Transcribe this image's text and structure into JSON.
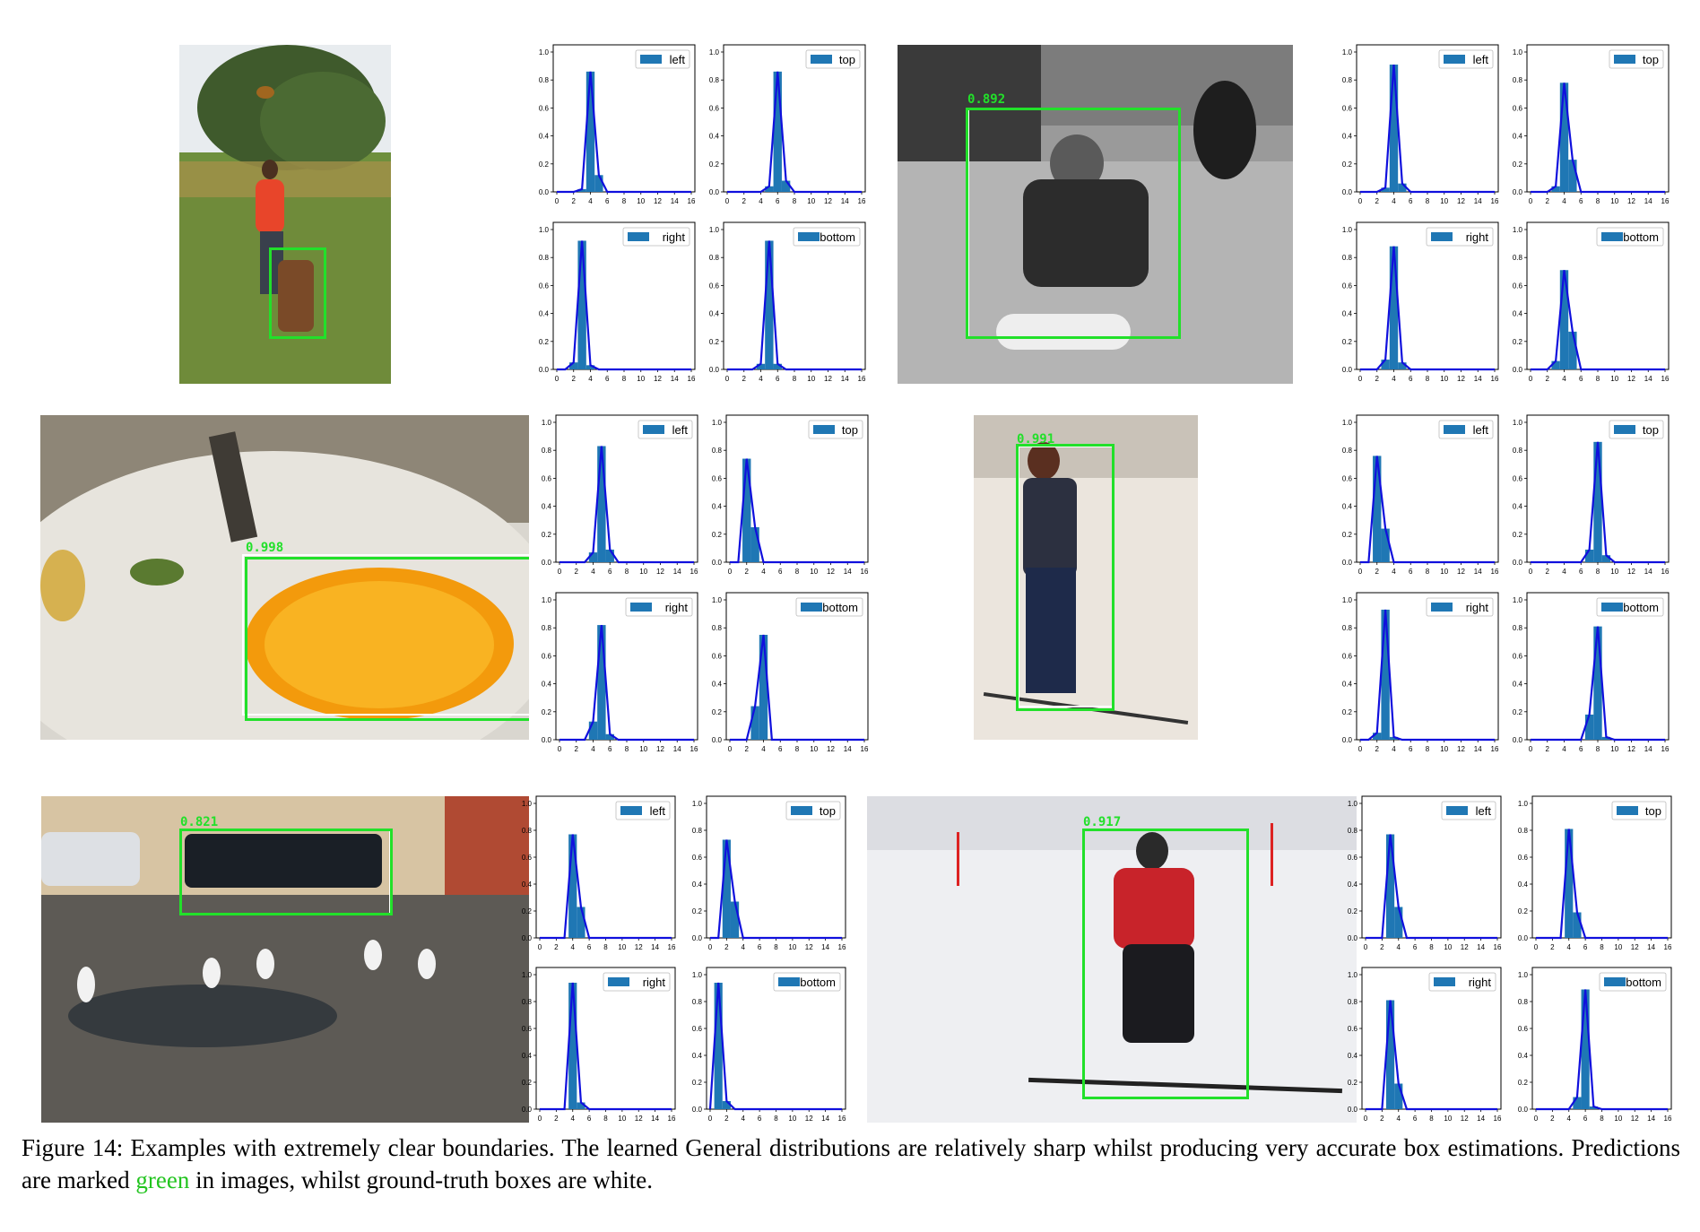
{
  "figure": {
    "caption_prefix": "Figure 14: Examples with extremely clear boundaries. The learned General distributions are relatively sharp whilst producing very accurate box estimations. Predictions are marked ",
    "caption_highlight": "green",
    "caption_suffix": " in images, whilst ground-truth boxes are white.",
    "colors": {
      "prediction": "#22e02a",
      "ground_truth": "#ffffff",
      "bar": "#1f77b4",
      "curve": "#1010dd"
    }
  },
  "photos": [
    {
      "id": "dog",
      "subject": "person and dog on grass",
      "score": ""
    },
    {
      "id": "child",
      "subject": "child sitting on sled (grayscale)",
      "score": "0.892"
    },
    {
      "id": "orange",
      "subject": "orange slice on plate",
      "score": "0.998"
    },
    {
      "id": "skier-woman",
      "subject": "woman standing on skis",
      "score": "0.991"
    },
    {
      "id": "truck",
      "subject": "pickup truck and egrets in parking lot",
      "score": "0.821"
    },
    {
      "id": "skier",
      "subject": "skier with poles on snow",
      "score": "0.917"
    }
  ],
  "chart_data": [
    {
      "type": "bar",
      "group": "dog",
      "legend": "left",
      "x": [
        0,
        1,
        2,
        3,
        4,
        5,
        6,
        7,
        8,
        9,
        10,
        11,
        12,
        13,
        14,
        15,
        16
      ],
      "values": [
        0,
        0,
        0,
        0.02,
        0.86,
        0.12,
        0,
        0,
        0,
        0,
        0,
        0,
        0,
        0,
        0,
        0,
        0
      ],
      "xlim": [
        0,
        16
      ],
      "ylim": [
        0,
        1.0
      ]
    },
    {
      "type": "bar",
      "group": "dog",
      "legend": "top",
      "x": [
        0,
        1,
        2,
        3,
        4,
        5,
        6,
        7,
        8,
        9,
        10,
        11,
        12,
        13,
        14,
        15,
        16
      ],
      "values": [
        0,
        0,
        0,
        0,
        0,
        0.04,
        0.86,
        0.08,
        0,
        0,
        0,
        0,
        0,
        0,
        0,
        0,
        0
      ],
      "xlim": [
        0,
        16
      ],
      "ylim": [
        0,
        1.0
      ]
    },
    {
      "type": "bar",
      "group": "dog",
      "legend": "right",
      "x": [
        0,
        1,
        2,
        3,
        4,
        5,
        6,
        7,
        8,
        9,
        10,
        11,
        12,
        13,
        14,
        15,
        16
      ],
      "values": [
        0,
        0,
        0.05,
        0.92,
        0.03,
        0,
        0,
        0,
        0,
        0,
        0,
        0,
        0,
        0,
        0,
        0,
        0
      ],
      "xlim": [
        0,
        16
      ],
      "ylim": [
        0,
        1.0
      ]
    },
    {
      "type": "bar",
      "group": "dog",
      "legend": "bottom",
      "x": [
        0,
        1,
        2,
        3,
        4,
        5,
        6,
        7,
        8,
        9,
        10,
        11,
        12,
        13,
        14,
        15,
        16
      ],
      "values": [
        0,
        0,
        0,
        0,
        0.04,
        0.92,
        0.04,
        0,
        0,
        0,
        0,
        0,
        0,
        0,
        0,
        0,
        0
      ],
      "xlim": [
        0,
        16
      ],
      "ylim": [
        0,
        1.0
      ]
    },
    {
      "type": "bar",
      "group": "child",
      "legend": "left",
      "x": [
        0,
        1,
        2,
        3,
        4,
        5,
        6,
        7,
        8,
        9,
        10,
        11,
        12,
        13,
        14,
        15,
        16
      ],
      "values": [
        0,
        0,
        0,
        0.03,
        0.91,
        0.06,
        0,
        0,
        0,
        0,
        0,
        0,
        0,
        0,
        0,
        0,
        0
      ],
      "xlim": [
        0,
        16
      ],
      "ylim": [
        0,
        1.0
      ]
    },
    {
      "type": "bar",
      "group": "child",
      "legend": "top",
      "x": [
        0,
        1,
        2,
        3,
        4,
        5,
        6,
        7,
        8,
        9,
        10,
        11,
        12,
        13,
        14,
        15,
        16
      ],
      "values": [
        0,
        0,
        0,
        0.04,
        0.78,
        0.23,
        0,
        0,
        0,
        0,
        0,
        0,
        0,
        0,
        0,
        0,
        0
      ],
      "xlim": [
        0,
        16
      ],
      "ylim": [
        0,
        1.0
      ]
    },
    {
      "type": "bar",
      "group": "child",
      "legend": "right",
      "x": [
        0,
        1,
        2,
        3,
        4,
        5,
        6,
        7,
        8,
        9,
        10,
        11,
        12,
        13,
        14,
        15,
        16
      ],
      "values": [
        0,
        0,
        0,
        0.07,
        0.88,
        0.05,
        0,
        0,
        0,
        0,
        0,
        0,
        0,
        0,
        0,
        0,
        0
      ],
      "xlim": [
        0,
        16
      ],
      "ylim": [
        0,
        1.0
      ]
    },
    {
      "type": "bar",
      "group": "child",
      "legend": "bottom",
      "x": [
        0,
        1,
        2,
        3,
        4,
        5,
        6,
        7,
        8,
        9,
        10,
        11,
        12,
        13,
        14,
        15,
        16
      ],
      "values": [
        0,
        0,
        0,
        0.06,
        0.71,
        0.27,
        0,
        0,
        0,
        0,
        0,
        0,
        0,
        0,
        0,
        0,
        0
      ],
      "xlim": [
        0,
        16
      ],
      "ylim": [
        0,
        1.0
      ]
    },
    {
      "type": "bar",
      "group": "orange",
      "legend": "left",
      "x": [
        0,
        1,
        2,
        3,
        4,
        5,
        6,
        7,
        8,
        9,
        10,
        11,
        12,
        13,
        14,
        15,
        16
      ],
      "values": [
        0,
        0,
        0,
        0,
        0.07,
        0.83,
        0.09,
        0,
        0,
        0,
        0,
        0,
        0,
        0,
        0,
        0,
        0
      ],
      "xlim": [
        0,
        16
      ],
      "ylim": [
        0,
        1.0
      ]
    },
    {
      "type": "bar",
      "group": "orange",
      "legend": "top",
      "x": [
        0,
        1,
        2,
        3,
        4,
        5,
        6,
        7,
        8,
        9,
        10,
        11,
        12,
        13,
        14,
        15,
        16
      ],
      "values": [
        0,
        0,
        0.74,
        0.25,
        0,
        0,
        0,
        0,
        0,
        0,
        0,
        0,
        0,
        0,
        0,
        0,
        0
      ],
      "xlim": [
        0,
        16
      ],
      "ylim": [
        0,
        1.0
      ]
    },
    {
      "type": "bar",
      "group": "orange",
      "legend": "right",
      "x": [
        0,
        1,
        2,
        3,
        4,
        5,
        6,
        7,
        8,
        9,
        10,
        11,
        12,
        13,
        14,
        15,
        16
      ],
      "values": [
        0,
        0,
        0,
        0,
        0.13,
        0.82,
        0.04,
        0,
        0,
        0,
        0,
        0,
        0,
        0,
        0,
        0,
        0
      ],
      "xlim": [
        0,
        16
      ],
      "ylim": [
        0,
        1.0
      ]
    },
    {
      "type": "bar",
      "group": "orange",
      "legend": "bottom",
      "x": [
        0,
        1,
        2,
        3,
        4,
        5,
        6,
        7,
        8,
        9,
        10,
        11,
        12,
        13,
        14,
        15,
        16
      ],
      "values": [
        0,
        0,
        0,
        0.24,
        0.75,
        0,
        0,
        0,
        0,
        0,
        0,
        0,
        0,
        0,
        0,
        0,
        0
      ],
      "xlim": [
        0,
        16
      ],
      "ylim": [
        0,
        1.0
      ]
    },
    {
      "type": "bar",
      "group": "skier-woman",
      "legend": "left",
      "x": [
        0,
        1,
        2,
        3,
        4,
        5,
        6,
        7,
        8,
        9,
        10,
        11,
        12,
        13,
        14,
        15,
        16
      ],
      "values": [
        0,
        0,
        0.76,
        0.24,
        0,
        0,
        0,
        0,
        0,
        0,
        0,
        0,
        0,
        0,
        0,
        0,
        0
      ],
      "xlim": [
        0,
        16
      ],
      "ylim": [
        0,
        1.0
      ]
    },
    {
      "type": "bar",
      "group": "skier-woman",
      "legend": "top",
      "x": [
        0,
        1,
        2,
        3,
        4,
        5,
        6,
        7,
        8,
        9,
        10,
        11,
        12,
        13,
        14,
        15,
        16
      ],
      "values": [
        0,
        0,
        0,
        0,
        0,
        0,
        0,
        0.09,
        0.86,
        0.05,
        0,
        0,
        0,
        0,
        0,
        0,
        0
      ],
      "xlim": [
        0,
        16
      ],
      "ylim": [
        0,
        1.0
      ]
    },
    {
      "type": "bar",
      "group": "skier-woman",
      "legend": "right",
      "x": [
        0,
        1,
        2,
        3,
        4,
        5,
        6,
        7,
        8,
        9,
        10,
        11,
        12,
        13,
        14,
        15,
        16
      ],
      "values": [
        0,
        0,
        0.05,
        0.93,
        0.02,
        0,
        0,
        0,
        0,
        0,
        0,
        0,
        0,
        0,
        0,
        0,
        0
      ],
      "xlim": [
        0,
        16
      ],
      "ylim": [
        0,
        1.0
      ]
    },
    {
      "type": "bar",
      "group": "skier-woman",
      "legend": "bottom",
      "x": [
        0,
        1,
        2,
        3,
        4,
        5,
        6,
        7,
        8,
        9,
        10,
        11,
        12,
        13,
        14,
        15,
        16
      ],
      "values": [
        0,
        0,
        0,
        0,
        0,
        0,
        0,
        0.18,
        0.81,
        0.02,
        0,
        0,
        0,
        0,
        0,
        0,
        0
      ],
      "xlim": [
        0,
        16
      ],
      "ylim": [
        0,
        1.0
      ]
    },
    {
      "type": "bar",
      "group": "truck",
      "legend": "left",
      "x": [
        0,
        1,
        2,
        3,
        4,
        5,
        6,
        7,
        8,
        9,
        10,
        11,
        12,
        13,
        14,
        15,
        16
      ],
      "values": [
        0,
        0,
        0,
        0,
        0.77,
        0.23,
        0,
        0,
        0,
        0,
        0,
        0,
        0,
        0,
        0,
        0,
        0
      ],
      "xlim": [
        0,
        16
      ],
      "ylim": [
        0,
        1.0
      ]
    },
    {
      "type": "bar",
      "group": "truck",
      "legend": "top",
      "x": [
        0,
        1,
        2,
        3,
        4,
        5,
        6,
        7,
        8,
        9,
        10,
        11,
        12,
        13,
        14,
        15,
        16
      ],
      "values": [
        0,
        0,
        0.73,
        0.27,
        0,
        0,
        0,
        0,
        0,
        0,
        0,
        0,
        0,
        0,
        0,
        0,
        0
      ],
      "xlim": [
        0,
        16
      ],
      "ylim": [
        0,
        1.0
      ]
    },
    {
      "type": "bar",
      "group": "truck",
      "legend": "right",
      "x": [
        0,
        1,
        2,
        3,
        4,
        5,
        6,
        7,
        8,
        9,
        10,
        11,
        12,
        13,
        14,
        15,
        16
      ],
      "values": [
        0,
        0,
        0,
        0,
        0.94,
        0.05,
        0,
        0,
        0,
        0,
        0,
        0,
        0,
        0,
        0,
        0,
        0
      ],
      "xlim": [
        0,
        16
      ],
      "ylim": [
        0,
        1.0
      ]
    },
    {
      "type": "bar",
      "group": "truck",
      "legend": "bottom",
      "x": [
        0,
        1,
        2,
        3,
        4,
        5,
        6,
        7,
        8,
        9,
        10,
        11,
        12,
        13,
        14,
        15,
        16
      ],
      "values": [
        0,
        0.94,
        0.06,
        0,
        0,
        0,
        0,
        0,
        0,
        0,
        0,
        0,
        0,
        0,
        0,
        0,
        0
      ],
      "xlim": [
        0,
        16
      ],
      "ylim": [
        0,
        1.0
      ]
    },
    {
      "type": "bar",
      "group": "skier",
      "legend": "left",
      "x": [
        0,
        1,
        2,
        3,
        4,
        5,
        6,
        7,
        8,
        9,
        10,
        11,
        12,
        13,
        14,
        15,
        16
      ],
      "values": [
        0,
        0,
        0,
        0.77,
        0.23,
        0,
        0,
        0,
        0,
        0,
        0,
        0,
        0,
        0,
        0,
        0,
        0
      ],
      "xlim": [
        0,
        16
      ],
      "ylim": [
        0,
        1.0
      ]
    },
    {
      "type": "bar",
      "group": "skier",
      "legend": "top",
      "x": [
        0,
        1,
        2,
        3,
        4,
        5,
        6,
        7,
        8,
        9,
        10,
        11,
        12,
        13,
        14,
        15,
        16
      ],
      "values": [
        0,
        0,
        0,
        0,
        0.81,
        0.19,
        0,
        0,
        0,
        0,
        0,
        0,
        0,
        0,
        0,
        0,
        0
      ],
      "xlim": [
        0,
        16
      ],
      "ylim": [
        0,
        1.0
      ]
    },
    {
      "type": "bar",
      "group": "skier",
      "legend": "right",
      "x": [
        0,
        1,
        2,
        3,
        4,
        5,
        6,
        7,
        8,
        9,
        10,
        11,
        12,
        13,
        14,
        15,
        16
      ],
      "values": [
        0,
        0,
        0,
        0.81,
        0.19,
        0,
        0,
        0,
        0,
        0,
        0,
        0,
        0,
        0,
        0,
        0,
        0
      ],
      "xlim": [
        0,
        16
      ],
      "ylim": [
        0,
        1.0
      ]
    },
    {
      "type": "bar",
      "group": "skier",
      "legend": "bottom",
      "x": [
        0,
        1,
        2,
        3,
        4,
        5,
        6,
        7,
        8,
        9,
        10,
        11,
        12,
        13,
        14,
        15,
        16
      ],
      "values": [
        0,
        0,
        0,
        0,
        0,
        0.09,
        0.89,
        0.02,
        0,
        0,
        0,
        0,
        0,
        0,
        0,
        0,
        0
      ],
      "xlim": [
        0,
        16
      ],
      "ylim": [
        0,
        1.0
      ]
    }
  ],
  "axes": {
    "y_ticks": [
      "0.0",
      "0.2",
      "0.4",
      "0.6",
      "0.8",
      "1.0"
    ],
    "x_ticks": [
      "0",
      "2",
      "4",
      "6",
      "8",
      "10",
      "12",
      "14",
      "16"
    ]
  }
}
